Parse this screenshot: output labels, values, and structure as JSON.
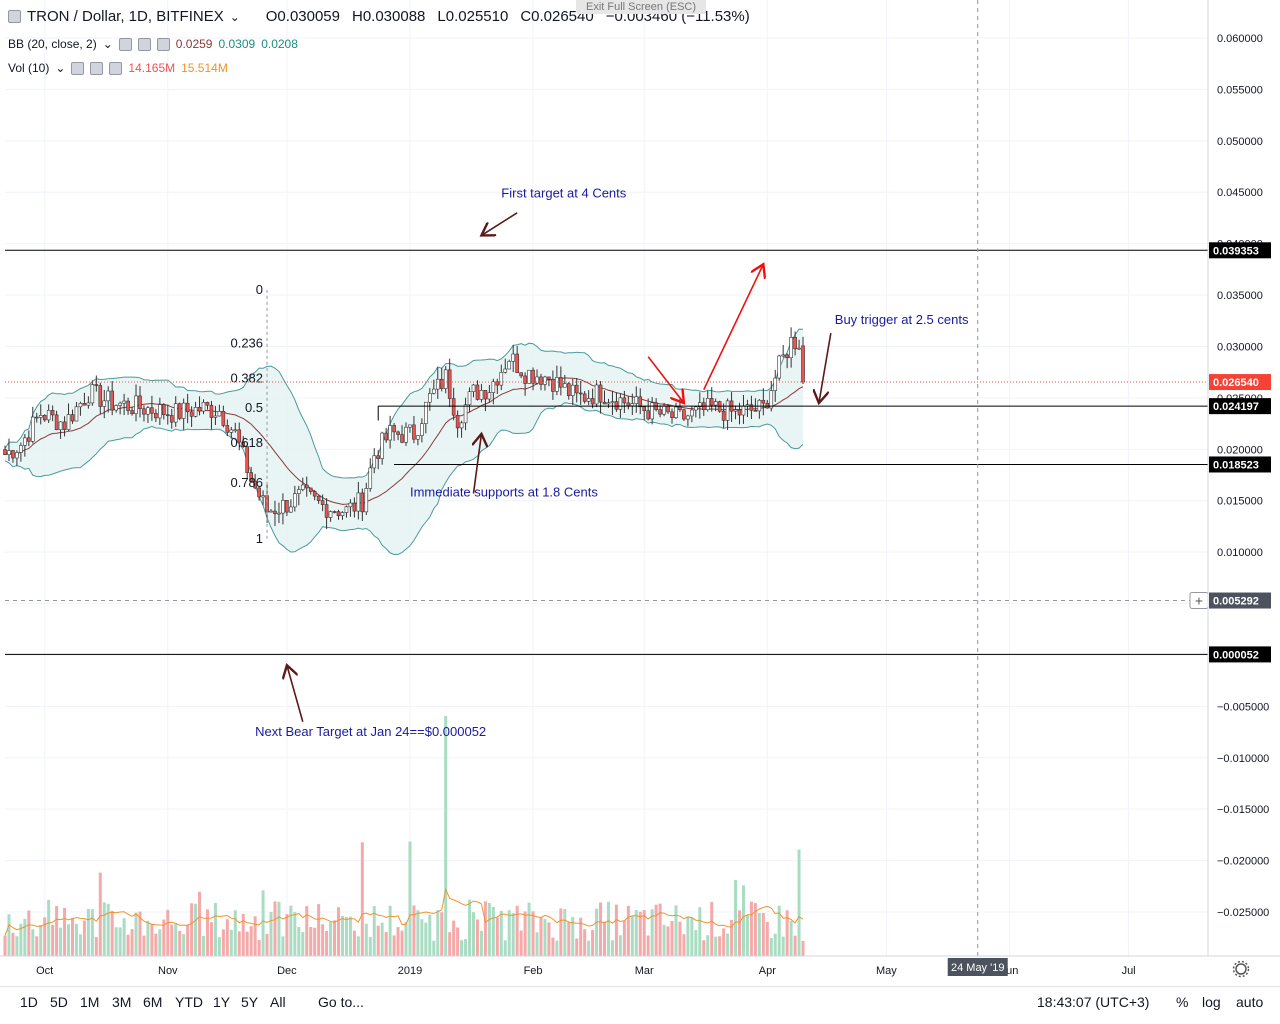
{
  "header": {
    "collapse_icon": "square-minus-icon",
    "symbol": "TRON / Dollar, 1D, BITFINEX",
    "open": "O0.030059",
    "high": "H0.030088",
    "low": "L0.025510",
    "close": "C0.026540",
    "change": "−0.003460 (−11.53%)",
    "exit_fullscreen": "Exit Full Screen (ESC)"
  },
  "indicators": {
    "bb": {
      "label": "BB (20, close, 2)",
      "basis": "0.0259",
      "upper": "0.0309",
      "lower": "0.0208"
    },
    "vol": {
      "label": "Vol (10)",
      "value": "14.165M",
      "ma": "15.514M"
    }
  },
  "colors": {
    "up": "#26a69a",
    "down": "#ef5350",
    "vol_up": "#a9dcc3",
    "vol_down": "#f5a9a9",
    "bb_line": "#4a9a9a",
    "bb_fill": "#e3f2f1",
    "basis": "#8b3a3a",
    "annot_text": "#1a1aa0",
    "arrow_dark": "#5a1a1a",
    "arrow_red": "#ee1111",
    "price_box": "#f44336"
  },
  "chart_data": {
    "type": "candlestick",
    "y_axis": {
      "ylim": [
        -0.03,
        0.0635
      ],
      "ticks": [
        "0.060000",
        "0.055000",
        "0.050000",
        "0.045000",
        "0.040000",
        "0.035000",
        "0.030000",
        "0.025000",
        "0.020000",
        "0.015000",
        "0.010000",
        "0.005000",
        "0.000000",
        "−0.005000",
        "−0.010000",
        "−0.015000",
        "−0.020000",
        "−0.025000"
      ],
      "tick_values": [
        0.06,
        0.055,
        0.05,
        0.045,
        0.04,
        0.035,
        0.03,
        0.025,
        0.02,
        0.015,
        0.01,
        0.005,
        0.0,
        -0.005,
        -0.01,
        -0.015,
        -0.02,
        -0.025
      ]
    },
    "x_axis": {
      "start": "2018-09-21",
      "end": "2019-07-21",
      "labels": [
        {
          "text": "Oct",
          "date": "2018-10-01"
        },
        {
          "text": "Nov",
          "date": "2018-11-01"
        },
        {
          "text": "Dec",
          "date": "2018-12-01"
        },
        {
          "text": "2019",
          "date": "2019-01-01"
        },
        {
          "text": "Feb",
          "date": "2019-02-01"
        },
        {
          "text": "Mar",
          "date": "2019-03-01"
        },
        {
          "text": "Apr",
          "date": "2019-04-01"
        },
        {
          "text": "May",
          "date": "2019-05-01"
        },
        {
          "text": "Jun",
          "date": "2019-06-01"
        },
        {
          "text": "Jul",
          "date": "2019-07-01"
        }
      ],
      "cursor_label": "24 May '19",
      "cursor_date": "2019-05-24"
    },
    "price_path": {
      "dates": [
        "2018-09-21",
        "2018-09-25",
        "2018-09-30",
        "2018-10-06",
        "2018-10-12",
        "2018-10-18",
        "2018-10-26",
        "2018-11-03",
        "2018-11-10",
        "2018-11-14",
        "2018-11-18",
        "2018-11-22",
        "2018-11-26",
        "2018-11-30",
        "2018-12-05",
        "2018-12-10",
        "2018-12-16",
        "2018-12-20",
        "2018-12-23",
        "2018-12-27",
        "2019-01-02",
        "2019-01-06",
        "2019-01-10",
        "2019-01-13",
        "2019-01-17",
        "2019-01-21",
        "2019-01-26",
        "2019-01-30",
        "2019-02-05",
        "2019-02-12",
        "2019-02-18",
        "2019-02-25",
        "2019-03-04",
        "2019-03-10",
        "2019-03-18",
        "2019-03-24",
        "2019-03-31",
        "2019-04-04",
        "2019-04-07",
        "2019-04-09",
        "2019-04-10"
      ],
      "closes": [
        0.0195,
        0.0205,
        0.0235,
        0.0225,
        0.0255,
        0.0245,
        0.024,
        0.0235,
        0.024,
        0.0238,
        0.0215,
        0.017,
        0.014,
        0.0145,
        0.0155,
        0.0145,
        0.014,
        0.015,
        0.0195,
        0.0215,
        0.0215,
        0.025,
        0.027,
        0.023,
        0.0255,
        0.026,
        0.029,
        0.0275,
        0.027,
        0.025,
        0.0255,
        0.0245,
        0.0235,
        0.023,
        0.024,
        0.0235,
        0.024,
        0.028,
        0.0305,
        0.0305,
        0.0265
      ]
    },
    "last_price": 0.02654,
    "horizontal_lines": [
      {
        "name": "first-target-line",
        "value": 0.039353,
        "label": "0.039353"
      },
      {
        "name": "support-0-5-line",
        "value": 0.024197,
        "label": "0.024197"
      },
      {
        "name": "immediate-support-line",
        "value": 0.018523,
        "label": "0.018523"
      },
      {
        "name": "bear-target-line",
        "value": 5.2e-05,
        "label": "0.000052"
      }
    ],
    "crosshair": {
      "value": 0.005292,
      "label": "0.005292"
    },
    "last_price_label": "0.026540",
    "fib_levels": [
      {
        "label": "0",
        "value": 0.0355
      },
      {
        "label": "0.236",
        "value": 0.0303
      },
      {
        "label": "0.382",
        "value": 0.0269
      },
      {
        "label": "0.5",
        "value": 0.024
      },
      {
        "label": "0.618",
        "value": 0.0206
      },
      {
        "label": "0.786",
        "value": 0.0167
      },
      {
        "label": "1",
        "value": 0.0113
      }
    ],
    "annotations": [
      {
        "text": "First target at 4 Cents",
        "date": "2019-01-24",
        "value": 0.0445
      },
      {
        "text": "Buy trigger at 2.5 cents",
        "date": "2019-04-18",
        "value": 0.0322
      },
      {
        "text": "Immediate supports at 1.8 Cents",
        "date": "2019-01-01",
        "value": 0.0154
      },
      {
        "text": "Next Bear Target at Jan 24==$0.000052",
        "date": "2018-11-23",
        "value": -0.0079
      }
    ]
  },
  "bottom": {
    "ranges": [
      "1D",
      "5D",
      "1M",
      "3M",
      "6M",
      "YTD",
      "1Y",
      "5Y",
      "All"
    ],
    "goto": "Go to...",
    "time": "18:43:07 (UTC+3)",
    "percent": "%",
    "log": "log",
    "auto": "auto",
    "settings_icon": "gear-icon"
  }
}
